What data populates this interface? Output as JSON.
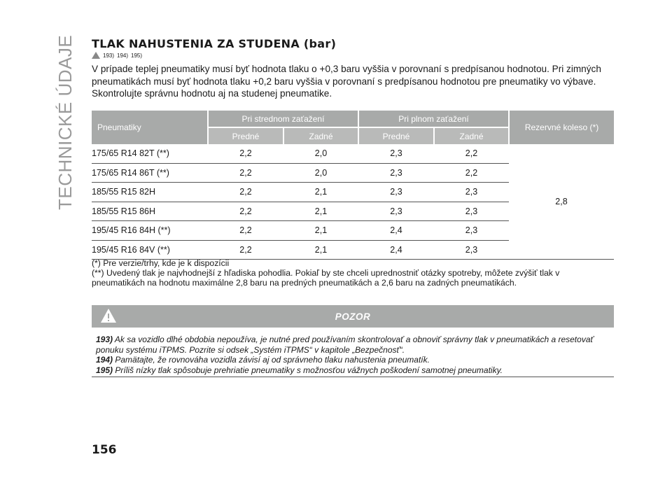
{
  "sidebar": {
    "section_title": "TECHNICKÉ ÚDAJE"
  },
  "heading": "TLAK NAHUSTENIA ZA STUDENA (bar)",
  "refs": [
    "193)",
    "194)",
    "195)"
  ],
  "intro": "V prípade teplej pneumatiky musí byť hodnota tlaku o +0,3 baru vyššia v porovnaní s predpísanou hodnotou. Pri zimných pneumatikách musí byť hodnota tlaku +0,2 baru vyššia v porovnaní s predpísanou hodnotou pre pneumatiky vo výbave. Skontrolujte správnu hodnotu aj na studenej pneumatike.",
  "table": {
    "col_tire": "Pneumatiky",
    "group_medium": "Pri strednom zaťažení",
    "group_full": "Pri plnom zaťažení",
    "col_spare": "Rezervné koleso (*)",
    "sub_front": "Predné",
    "sub_rear": "Zadné",
    "spare_value": "2,8",
    "rows": [
      {
        "tire": "175/65 R14 82T (**)",
        "m_front": "2,2",
        "m_rear": "2,0",
        "f_front": "2,3",
        "f_rear": "2,2"
      },
      {
        "tire": "175/65 R14 86T (**)",
        "m_front": "2,2",
        "m_rear": "2,0",
        "f_front": "2,3",
        "f_rear": "2,2"
      },
      {
        "tire": "185/55 R15 82H",
        "m_front": "2,2",
        "m_rear": "2,1",
        "f_front": "2,3",
        "f_rear": "2,3"
      },
      {
        "tire": "185/55 R15 86H",
        "m_front": "2,2",
        "m_rear": "2,1",
        "f_front": "2,3",
        "f_rear": "2,3"
      },
      {
        "tire": "195/45 R16 84H (**)",
        "m_front": "2,2",
        "m_rear": "2,1",
        "f_front": "2,4",
        "f_rear": "2,3"
      },
      {
        "tire": "195/45 R16 84V (**)",
        "m_front": "2,2",
        "m_rear": "2,1",
        "f_front": "2,4",
        "f_rear": "2,3"
      }
    ]
  },
  "footnotes": [
    "(*) Pre verzie/trhy, kde je k dispozícii",
    "(**) Uvedený tlak je najvhodnejší z hľadiska pohodlia. Pokiaľ by ste chceli uprednostniť otázky spotreby, môžete zvýšiť tlak v pneumatikách na hodnotu maximálne 2,8 baru na predných pneumatikách a 2,6 baru na zadných pneumatikách."
  ],
  "warning": {
    "title": "POZOR",
    "items": [
      {
        "num": "193)",
        "text": "Ak sa vozidlo dlhé obdobia nepoužíva, je nutné pred používaním skontrolovať a obnoviť správny tlak v pneumatikách a resetovať ponuku systému iTPMS. Pozrite si odsek „Systém iTPMS“ v kapitole „Bezpečnosť“."
      },
      {
        "num": "194)",
        "text": "Pamätajte, že rovnováha vozidla závisí aj od správneho tlaku nahustenia pneumatík."
      },
      {
        "num": "195)",
        "text": "Príliš nízky tlak spôsobuje prehriatie pneumatiky s možnosťou vážnych poškodení samotnej pneumatiky."
      }
    ]
  },
  "page_number": "156"
}
